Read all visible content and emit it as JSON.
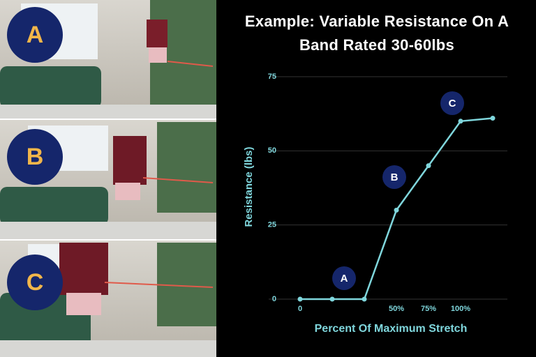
{
  "panels": [
    "A",
    "B",
    "C"
  ],
  "chart_data": {
    "type": "line",
    "title": "Example: Variable Resistance On A Band Rated 30-60lbs",
    "y_label": "Resistance (lbs)",
    "x_label": "Percent Of Maximum Stretch",
    "categories": [
      "0",
      null,
      null,
      "50%",
      "75%",
      "100%",
      null
    ],
    "values": [
      0,
      0,
      0,
      30,
      45,
      60,
      61
    ],
    "color": "#7fd6dc",
    "ylim": [
      0,
      75
    ],
    "yticks": [
      0,
      25,
      50,
      75
    ],
    "grid": true,
    "annotations": [
      "A",
      "B",
      "C"
    ]
  }
}
